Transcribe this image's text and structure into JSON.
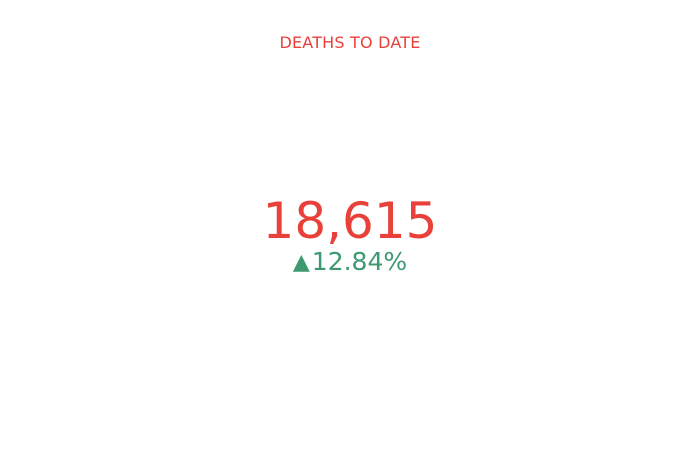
{
  "indicator": {
    "title": "DEATHS TO DATE",
    "value": "18,615",
    "delta": {
      "icon": "triangle-up-icon",
      "symbol": "▲",
      "text": "12.84%"
    },
    "colors": {
      "title": "#e8413a",
      "value": "#e8413a",
      "delta": "#3d9970"
    }
  }
}
